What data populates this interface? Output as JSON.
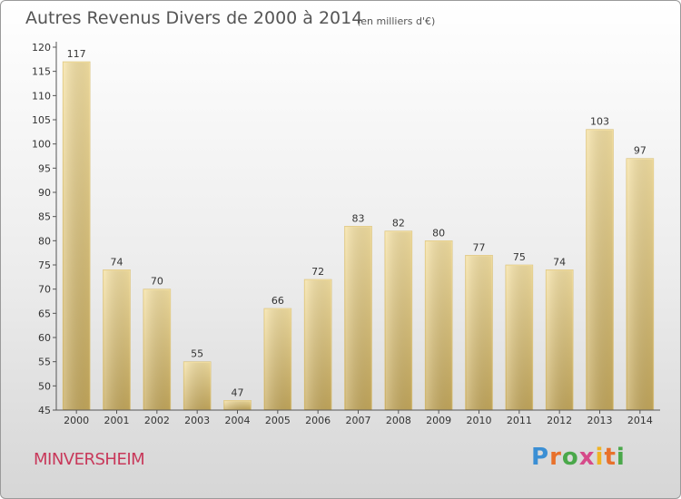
{
  "title": "Autres Revenus Divers de 2000 à 2014",
  "subtitle": "(en milliers d'€)",
  "commune": "MINVERSHEIM",
  "logo": {
    "text": "Proxiti",
    "colors": [
      "#3b8fd4",
      "#e8712b",
      "#4aa84a",
      "#d64b8a",
      "#f0b323"
    ]
  },
  "colors": {
    "bar_light": "#f3dc9a",
    "bar_dark": "#c9ae64",
    "axis": "#555555",
    "text": "#333333",
    "commune": "#c8385a"
  },
  "chart_data": {
    "type": "bar",
    "title": "Autres Revenus Divers de 2000 à 2014",
    "subtitle": "(en milliers d'€)",
    "xlabel": "",
    "ylabel": "",
    "categories": [
      "2000",
      "2001",
      "2002",
      "2003",
      "2004",
      "2005",
      "2006",
      "2007",
      "2008",
      "2009",
      "2010",
      "2011",
      "2012",
      "2013",
      "2014"
    ],
    "values": [
      117,
      74,
      70,
      55,
      47,
      66,
      72,
      83,
      82,
      80,
      77,
      75,
      74,
      103,
      97
    ],
    "ylim": [
      45,
      120
    ],
    "yticks": [
      45,
      50,
      55,
      60,
      65,
      70,
      75,
      80,
      85,
      90,
      95,
      100,
      105,
      110,
      115,
      120
    ],
    "grid": false,
    "legend": "none"
  }
}
